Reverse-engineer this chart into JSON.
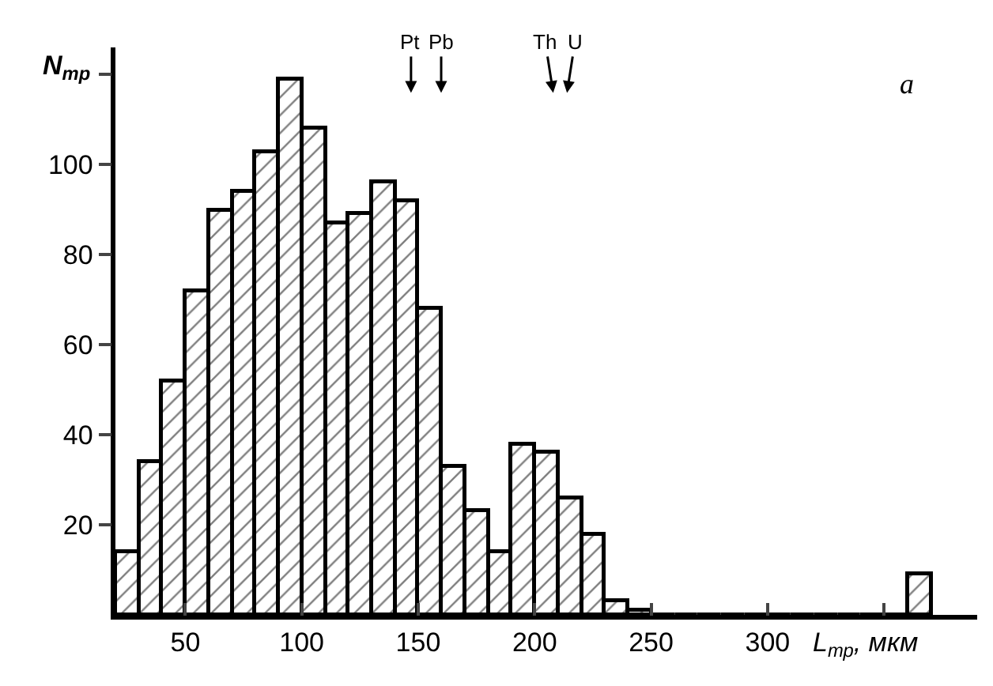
{
  "chart_data": {
    "type": "histogram",
    "xlabel": "L$_{тр}$, мкм",
    "ylabel": "N$_{тр}$",
    "bins": [
      20,
      30,
      40,
      50,
      60,
      70,
      80,
      90,
      100,
      110,
      120,
      130,
      140,
      150,
      160,
      170,
      180,
      190,
      200,
      210,
      220,
      230,
      240,
      250,
      260,
      270,
      280,
      290,
      300,
      310,
      320,
      330,
      340,
      350,
      360,
      370
    ],
    "values": [
      14,
      34,
      52,
      72,
      90,
      94,
      103,
      119,
      108,
      87,
      89,
      96,
      92,
      68,
      33,
      23,
      14,
      38,
      36,
      26,
      18,
      3,
      1,
      0,
      0,
      0,
      0,
      0,
      0,
      0,
      0,
      0,
      0,
      0,
      9
    ],
    "color": "#000000",
    "xlim": [
      20,
      390
    ],
    "xticks": [
      50,
      100,
      150,
      200,
      250,
      300,
      {
        "value": 350,
        "label": null
      }
    ],
    "ylim": [
      0,
      126
    ],
    "yticks": [
      20,
      40,
      60,
      80,
      100,
      {
        "value": 120,
        "label": null
      }
    ],
    "annotations": [
      "Pt",
      "Pb",
      "Th",
      "U",
      "a"
    ]
  }
}
